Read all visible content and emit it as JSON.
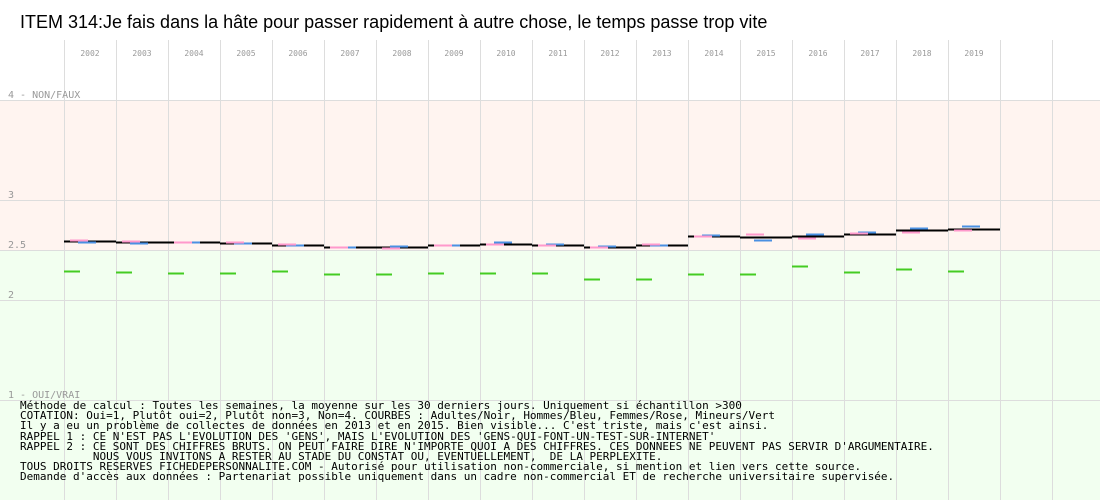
{
  "chart_data": {
    "type": "line",
    "title": "ITEM 314:Je fais dans la hâte pour passer rapidement à autre chose, le temps passe trop vite",
    "xlabel": "",
    "ylabel": "",
    "ylim": [
      1,
      4
    ],
    "grid": true,
    "x": [
      "2002",
      "2003",
      "2004",
      "2005",
      "2006",
      "2007",
      "2008",
      "2009",
      "2010",
      "2011",
      "2012",
      "2013",
      "2014",
      "2015",
      "2016",
      "2017",
      "2018",
      "2019"
    ],
    "yticks": [
      {
        "value": 4,
        "label": "4 - NON/FAUX"
      },
      {
        "value": 3,
        "label": "3"
      },
      {
        "value": 2.5,
        "label": "2.5"
      },
      {
        "value": 2,
        "label": "2"
      },
      {
        "value": 1,
        "label": "1 - OUI/VRAI"
      }
    ],
    "zones": [
      {
        "from": 2.5,
        "to": 4,
        "color": "#fff4f0"
      },
      {
        "from": 1,
        "to": 2.5,
        "color": "#f2fff0"
      }
    ],
    "series": [
      {
        "name": "Adultes",
        "color": "#000000",
        "values": [
          2.59,
          2.58,
          2.58,
          2.57,
          2.55,
          2.53,
          2.53,
          2.55,
          2.56,
          2.55,
          2.53,
          2.55,
          2.64,
          2.63,
          2.64,
          2.66,
          2.7,
          2.71
        ]
      },
      {
        "name": "Hommes",
        "color": "#4a90e2",
        "values": [
          2.58,
          2.57,
          2.58,
          2.57,
          2.55,
          2.53,
          2.54,
          2.55,
          2.58,
          2.56,
          2.54,
          2.55,
          2.65,
          2.6,
          2.66,
          2.68,
          2.72,
          2.74
        ]
      },
      {
        "name": "Femmes",
        "color": "#ff99cc",
        "values": [
          2.6,
          2.59,
          2.58,
          2.58,
          2.56,
          2.53,
          2.52,
          2.55,
          2.56,
          2.55,
          2.53,
          2.56,
          2.64,
          2.66,
          2.62,
          2.67,
          2.68,
          2.7
        ]
      },
      {
        "name": "Mineurs",
        "color": "#44cc22",
        "values": [
          2.29,
          2.28,
          2.27,
          2.27,
          2.29,
          2.26,
          2.26,
          2.27,
          2.27,
          2.27,
          2.21,
          2.21,
          2.26,
          2.26,
          2.34,
          2.28,
          2.31,
          2.29
        ]
      }
    ]
  },
  "footnotes": [
    "Méthode de calcul : Toutes les semaines, la moyenne sur les 30 derniers jours. Uniquement si échantillon >300",
    "COTATION: Oui=1, Plutôt oui=2, Plutôt non=3, Non=4. COURBES : Adultes/Noir, Hommes/Bleu, Femmes/Rose, Mineurs/Vert",
    "Il y a eu un problème de collectes de données en 2013 et en 2015. Bien visible... C'est triste, mais c'est ainsi.",
    "RAPPEL 1 : CE N'EST PAS L'EVOLUTION DES 'GENS', MAIS L'EVOLUTION DES 'GENS-QUI-FONT-UN-TEST-SUR-INTERNET'",
    "RAPPEL 2 : CE SONT DES CHIFFRES BRUTS. ON PEUT FAIRE DIRE N'IMPORTE QUOI A DES CHIFFRES. CES DONNEES NE PEUVENT PAS SERVIR D'ARGUMENTAIRE.",
    "           NOUS VOUS INVITONS A RESTER AU STADE DU CONSTAT OU, EVENTUELLEMENT,  DE LA PERPLEXITE.",
    "TOUS DROITS RESERVES FICHEDEPERSONNALITE.COM - Autorisé pour utilisation non-commerciale, si mention et lien vers cette source.",
    "Demande d'accès aux données : Partenariat possible uniquement dans un cadre non-commercial ET de recherche universitaire supervisée."
  ]
}
